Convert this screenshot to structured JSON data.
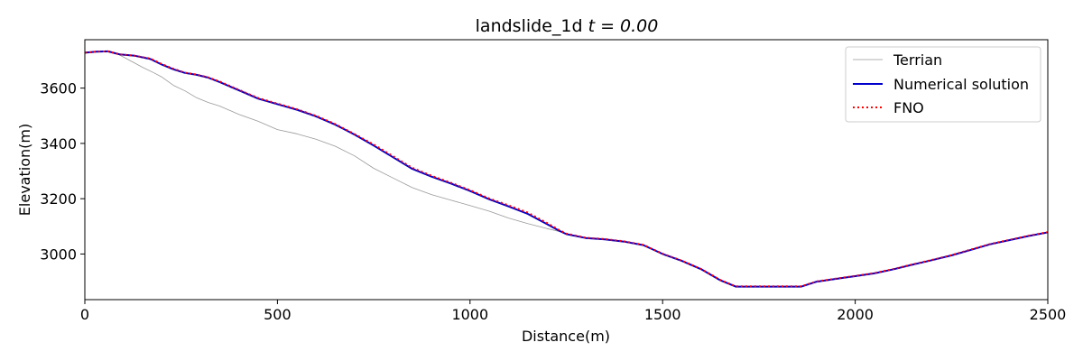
{
  "chart_data": {
    "type": "line",
    "title": "landslide_1d ",
    "title_math": "t = 0.00",
    "xlabel": "Distance(m)",
    "ylabel": "Elevation(m)",
    "xlim": [
      0,
      2500
    ],
    "ylim": [
      2835,
      3775
    ],
    "xticks": [
      0,
      500,
      1000,
      1500,
      2000,
      2500
    ],
    "yticks": [
      3000,
      3200,
      3400,
      3600
    ],
    "grid": false,
    "legend_position": "top-right",
    "series": [
      {
        "name": "Terrian",
        "color": "#999999",
        "style": "solid-thin",
        "x": [
          0,
          30,
          60,
          90,
          110,
          130,
          150,
          180,
          200,
          230,
          260,
          290,
          320,
          350,
          400,
          450,
          500,
          550,
          600,
          650,
          700,
          750,
          800,
          850,
          900,
          950,
          1000,
          1050,
          1100,
          1150,
          1200,
          1230,
          1250,
          1300,
          1350,
          1400,
          1450,
          1500,
          1550,
          1600,
          1650,
          1690,
          1750,
          1800,
          1860,
          1900,
          1950,
          2000,
          2050,
          2100,
          2150,
          2200,
          2250,
          2300,
          2350,
          2400,
          2450,
          2500
        ],
        "y": [
          3728,
          3732,
          3733,
          3720,
          3705,
          3690,
          3675,
          3655,
          3640,
          3610,
          3590,
          3565,
          3548,
          3535,
          3505,
          3480,
          3450,
          3435,
          3415,
          3390,
          3355,
          3310,
          3275,
          3240,
          3215,
          3195,
          3175,
          3155,
          3130,
          3110,
          3092,
          3082,
          3072,
          3058,
          3053,
          3045,
          3032,
          3000,
          2975,
          2945,
          2905,
          2882,
          2882,
          2882,
          2882,
          2900,
          2910,
          2920,
          2930,
          2945,
          2962,
          2978,
          2995,
          3015,
          3035,
          3050,
          3065,
          3078
        ]
      },
      {
        "name": "Numerical solution",
        "color": "#0000cc",
        "style": "solid",
        "x": [
          0,
          30,
          60,
          90,
          130,
          170,
          200,
          230,
          260,
          290,
          320,
          350,
          400,
          450,
          500,
          550,
          600,
          650,
          700,
          750,
          800,
          850,
          900,
          950,
          1000,
          1050,
          1100,
          1150,
          1200,
          1230,
          1250,
          1300,
          1350,
          1400,
          1450,
          1500,
          1550,
          1600,
          1650,
          1690,
          1750,
          1800,
          1860,
          1900,
          1950,
          2000,
          2050,
          2100,
          2150,
          2200,
          2250,
          2300,
          2350,
          2400,
          2450,
          2500
        ],
        "y": [
          3728,
          3732,
          3733,
          3722,
          3717,
          3705,
          3685,
          3668,
          3655,
          3648,
          3638,
          3622,
          3592,
          3562,
          3542,
          3522,
          3498,
          3468,
          3432,
          3392,
          3350,
          3308,
          3280,
          3255,
          3228,
          3198,
          3172,
          3145,
          3108,
          3085,
          3072,
          3058,
          3053,
          3045,
          3032,
          3000,
          2975,
          2945,
          2905,
          2882,
          2882,
          2882,
          2882,
          2900,
          2910,
          2920,
          2930,
          2945,
          2962,
          2978,
          2995,
          3015,
          3035,
          3050,
          3065,
          3078
        ]
      },
      {
        "name": "FNO",
        "color": "#ff0000",
        "style": "dotted",
        "x": [
          0,
          30,
          60,
          90,
          130,
          170,
          200,
          230,
          260,
          290,
          320,
          350,
          400,
          450,
          500,
          550,
          600,
          650,
          700,
          750,
          800,
          850,
          900,
          950,
          1000,
          1050,
          1100,
          1150,
          1200,
          1230,
          1250,
          1300,
          1350,
          1400,
          1450,
          1500,
          1550,
          1600,
          1650,
          1690,
          1750,
          1800,
          1860,
          1900,
          1950,
          2000,
          2050,
          2100,
          2150,
          2200,
          2250,
          2300,
          2350,
          2400,
          2450,
          2500
        ],
        "y": [
          3728,
          3732,
          3733,
          3722,
          3717,
          3707,
          3687,
          3670,
          3656,
          3649,
          3639,
          3624,
          3594,
          3564,
          3544,
          3524,
          3500,
          3470,
          3434,
          3396,
          3354,
          3312,
          3283,
          3258,
          3231,
          3201,
          3176,
          3150,
          3112,
          3088,
          3074,
          3059,
          3054,
          3046,
          3033,
          3001,
          2976,
          2946,
          2906,
          2883,
          2883,
          2883,
          2883,
          2901,
          2911,
          2921,
          2931,
          2946,
          2963,
          2979,
          2996,
          3016,
          3036,
          3051,
          3066,
          3079
        ]
      }
    ]
  }
}
